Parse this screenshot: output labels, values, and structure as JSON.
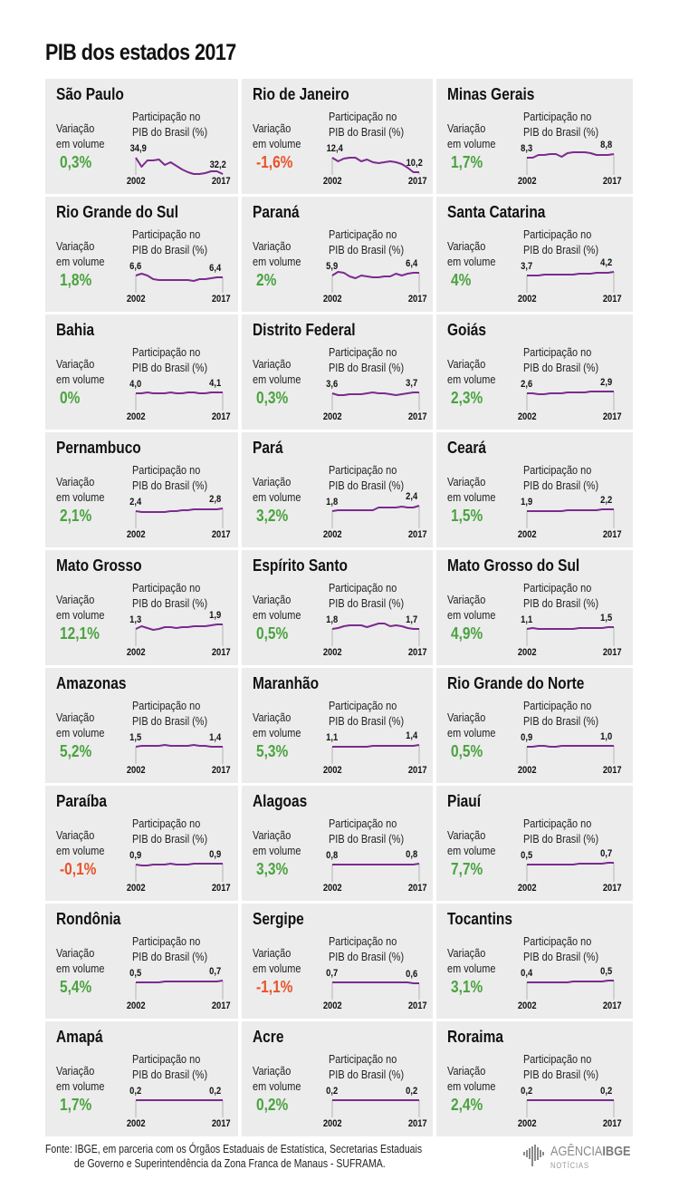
{
  "title": "PIB dos estados 2017",
  "labels": {
    "variation": [
      "Variação",
      "em volume"
    ],
    "participation": [
      "Participação no",
      "PIB do Brasil (%)"
    ],
    "year_start": "2002",
    "year_end": "2017"
  },
  "colors": {
    "panel_bg": "#ececec",
    "positive": "#4aa33f",
    "negative": "#e8532a",
    "line": "#7b2b8f",
    "axis": "#b5b5b5"
  },
  "footer": {
    "line1": "Fonte: IBGE, em parceria com os Órgãos Estaduais de Estatística, Secretarias Estaduais",
    "line2": "de Governo e Superintendência da Zona Franca de Manaus - SUFRAMA.",
    "logo_main": "AGÊNCIA",
    "logo_bold": "IBGE",
    "logo_sub": "NOTÍCIAS"
  },
  "chart_data": {
    "type": "line",
    "title": "PIB dos estados 2017",
    "xlabel": "",
    "ylabel": "Participação no PIB do Brasil (%)",
    "x_range": [
      "2002",
      "2017"
    ],
    "states": [
      {
        "name": "São Paulo",
        "variation": "0,3%",
        "start": "34,9",
        "end": "32,2",
        "shape": [
          0,
          10,
          3,
          3,
          2,
          8,
          5,
          9,
          13,
          16,
          18,
          18,
          17,
          15,
          15,
          18
        ]
      },
      {
        "name": "Rio de Janeiro",
        "variation": "-1,6%",
        "start": "12,4",
        "end": "10,2",
        "shape": [
          0,
          4,
          1,
          0,
          0,
          4,
          2,
          5,
          6,
          5,
          4,
          5,
          7,
          11,
          16,
          16
        ]
      },
      {
        "name": "Minas Gerais",
        "variation": "1,7%",
        "start": "8,3",
        "end": "8,8",
        "shape": [
          0,
          0,
          -3,
          -3,
          -4,
          -4,
          -1,
          -5,
          -6,
          -6,
          -6,
          -5,
          -3,
          -3,
          -3,
          -4
        ]
      },
      {
        "name": "Rio Grande do Sul",
        "variation": "1,8%",
        "start": "6,6",
        "end": "6,4",
        "shape": [
          0,
          -2,
          0,
          4,
          5,
          5,
          5,
          5,
          5,
          5,
          6,
          4,
          4,
          3,
          2,
          2
        ]
      },
      {
        "name": "Paraná",
        "variation": "2%",
        "start": "5,9",
        "end": "6,4",
        "shape": [
          0,
          -4,
          -3,
          1,
          3,
          0,
          1,
          2,
          2,
          1,
          1,
          -2,
          0,
          -2,
          -3,
          -3
        ]
      },
      {
        "name": "Santa Catarina",
        "variation": "4%",
        "start": "3,7",
        "end": "4,2",
        "shape": [
          0,
          0,
          0,
          -1,
          -1,
          -1,
          -1,
          -1,
          -1,
          -2,
          -2,
          -2,
          -3,
          -3,
          -3,
          -4
        ]
      },
      {
        "name": "Bahia",
        "variation": "0%",
        "start": "4,0",
        "end": "4,1",
        "shape": [
          0,
          0,
          -1,
          0,
          0,
          0,
          -1,
          0,
          0,
          -1,
          -1,
          0,
          0,
          -1,
          -1,
          -1
        ]
      },
      {
        "name": "Distrito Federal",
        "variation": "0,3%",
        "start": "3,6",
        "end": "3,7",
        "shape": [
          0,
          2,
          2,
          1,
          1,
          1,
          0,
          -1,
          0,
          0,
          1,
          2,
          1,
          0,
          -1,
          -1
        ]
      },
      {
        "name": "Goiás",
        "variation": "2,3%",
        "start": "2,6",
        "end": "2,9",
        "shape": [
          0,
          0,
          1,
          1,
          0,
          0,
          0,
          -1,
          -1,
          -1,
          -1,
          -2,
          -2,
          -2,
          -2,
          -2
        ]
      },
      {
        "name": "Pernambuco",
        "variation": "2,1%",
        "start": "2,4",
        "end": "2,8",
        "shape": [
          0,
          1,
          1,
          1,
          1,
          1,
          0,
          0,
          -1,
          -1,
          -2,
          -2,
          -2,
          -2,
          -2,
          -3
        ]
      },
      {
        "name": "Pará",
        "variation": "3,2%",
        "start": "1,8",
        "end": "2,4",
        "shape": [
          0,
          -1,
          -1,
          -1,
          -1,
          -1,
          -1,
          -1,
          -4,
          -4,
          -4,
          -4,
          -5,
          -4,
          -4,
          -6
        ]
      },
      {
        "name": "Ceará",
        "variation": "1,5%",
        "start": "1,9",
        "end": "2,2",
        "shape": [
          0,
          0,
          0,
          0,
          0,
          0,
          0,
          -1,
          -1,
          -1,
          -1,
          -1,
          -1,
          -2,
          -2,
          -2
        ]
      },
      {
        "name": "Mato Grosso",
        "variation": "12,1%",
        "start": "1,3",
        "end": "1,9",
        "shape": [
          0,
          -3,
          -1,
          1,
          0,
          -2,
          -2,
          -1,
          -2,
          -2,
          -3,
          -3,
          -3,
          -4,
          -5,
          -5
        ]
      },
      {
        "name": "Espírito Santo",
        "variation": "0,5%",
        "start": "1,8",
        "end": "1,7",
        "shape": [
          0,
          -1,
          -3,
          -4,
          -4,
          -4,
          -2,
          -4,
          -6,
          -6,
          -3,
          -4,
          -3,
          -1,
          0,
          0
        ]
      },
      {
        "name": "Mato Grosso do Sul",
        "variation": "4,9%",
        "start": "1,1",
        "end": "1,5",
        "shape": [
          0,
          -1,
          0,
          0,
          0,
          0,
          0,
          0,
          0,
          -1,
          -1,
          -1,
          -1,
          -1,
          -2,
          -2
        ]
      },
      {
        "name": "Amazonas",
        "variation": "5,2%",
        "start": "1,5",
        "end": "1,4",
        "shape": [
          0,
          -1,
          -1,
          -1,
          -1,
          -2,
          -1,
          -1,
          -1,
          -1,
          -2,
          -1,
          -1,
          0,
          0,
          0
        ]
      },
      {
        "name": "Maranhão",
        "variation": "5,3%",
        "start": "1,1",
        "end": "1,4",
        "shape": [
          0,
          0,
          0,
          0,
          0,
          0,
          0,
          -1,
          -1,
          -1,
          -1,
          -1,
          -1,
          -1,
          -1,
          -2
        ]
      },
      {
        "name": "Rio Grande do Norte",
        "variation": "0,5%",
        "start": "0,9",
        "end": "1,0",
        "shape": [
          0,
          0,
          -1,
          -1,
          0,
          0,
          -1,
          -1,
          -1,
          -1,
          -1,
          -1,
          -1,
          -1,
          -1,
          -1
        ]
      },
      {
        "name": "Paraíba",
        "variation": "-0,1%",
        "start": "0,9",
        "end": "0,9",
        "shape": [
          0,
          1,
          1,
          0,
          0,
          0,
          -1,
          0,
          0,
          0,
          -1,
          -1,
          -1,
          -1,
          -1,
          -1
        ]
      },
      {
        "name": "Alagoas",
        "variation": "3,3%",
        "start": "0,8",
        "end": "0,8",
        "shape": [
          0,
          0,
          0,
          0,
          0,
          0,
          0,
          0,
          0,
          0,
          0,
          0,
          0,
          0,
          0,
          -1
        ]
      },
      {
        "name": "Piauí",
        "variation": "7,7%",
        "start": "0,5",
        "end": "0,7",
        "shape": [
          0,
          0,
          0,
          0,
          0,
          0,
          0,
          0,
          0,
          -1,
          -1,
          -1,
          -1,
          -1,
          -2,
          -2
        ]
      },
      {
        "name": "Rondônia",
        "variation": "5,4%",
        "start": "0,5",
        "end": "0,7",
        "shape": [
          0,
          0,
          0,
          0,
          0,
          -1,
          -1,
          -1,
          -1,
          -1,
          -1,
          -1,
          -1,
          -1,
          -1,
          -2
        ]
      },
      {
        "name": "Sergipe",
        "variation": "-1,1%",
        "start": "0,7",
        "end": "0,6",
        "shape": [
          0,
          0,
          0,
          0,
          0,
          0,
          0,
          0,
          0,
          0,
          0,
          0,
          0,
          0,
          1,
          1
        ]
      },
      {
        "name": "Tocantins",
        "variation": "3,1%",
        "start": "0,4",
        "end": "0,5",
        "shape": [
          0,
          0,
          0,
          0,
          0,
          0,
          0,
          0,
          -1,
          -1,
          -1,
          -1,
          -1,
          -1,
          -2,
          -2
        ]
      },
      {
        "name": "Amapá",
        "variation": "1,7%",
        "start": "0,2",
        "end": "0,2",
        "shape": [
          0,
          0,
          0,
          0,
          0,
          0,
          0,
          0,
          0,
          0,
          0,
          0,
          0,
          0,
          0,
          0
        ]
      },
      {
        "name": "Acre",
        "variation": "0,2%",
        "start": "0,2",
        "end": "0,2",
        "shape": [
          0,
          0,
          0,
          0,
          0,
          0,
          0,
          0,
          0,
          0,
          0,
          0,
          0,
          0,
          0,
          0
        ]
      },
      {
        "name": "Roraima",
        "variation": "2,4%",
        "start": "0,2",
        "end": "0,2",
        "shape": [
          0,
          0,
          0,
          0,
          0,
          0,
          0,
          0,
          0,
          0,
          0,
          0,
          0,
          0,
          0,
          0
        ]
      }
    ]
  }
}
